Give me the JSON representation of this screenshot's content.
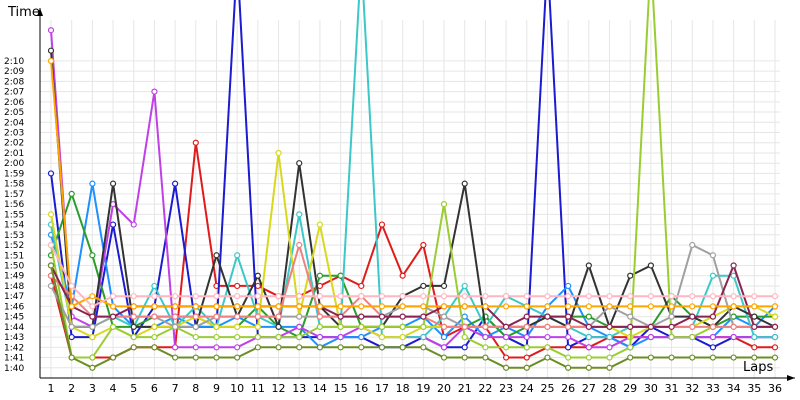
{
  "chart_data": {
    "type": "line",
    "ylabel": "Time",
    "xlabel": "Laps",
    "x_categories": [
      "1",
      "2",
      "3",
      "4",
      "5",
      "6",
      "7",
      "8",
      "9",
      "10",
      "11",
      "12",
      "13",
      "14",
      "15",
      "16",
      "17",
      "18",
      "19",
      "20",
      "21",
      "22",
      "23",
      "24",
      "25",
      "26",
      "27",
      "28",
      "29",
      "30",
      "31",
      "32",
      "33",
      "34",
      "35",
      "36"
    ],
    "y_ticks": [
      "1:40",
      "1:41",
      "1:42",
      "1:43",
      "1:44",
      "1:45",
      "1:46",
      "1:47",
      "1:48",
      "1:49",
      "1:50",
      "1:51",
      "1:52",
      "1:53",
      "1:54",
      "1:55",
      "1:56",
      "1:57",
      "1:58",
      "1:59",
      "2:00",
      "2:01",
      "2:02",
      "2:03",
      "2:04",
      "2:05",
      "2:06",
      "2:07",
      "2:08",
      "2:09",
      "2:10"
    ],
    "y_range_seconds": [
      99,
      134
    ],
    "grid": "on",
    "series": [
      {
        "color": "#e01b1b",
        "values": [
          109,
          101,
          101,
          101,
          102,
          102,
          102,
          122,
          108,
          108,
          108,
          107,
          107,
          108,
          109,
          108,
          114,
          109,
          112,
          103,
          104,
          104,
          101,
          101,
          102,
          102,
          102,
          103,
          103,
          103,
          103,
          103,
          103,
          103,
          102,
          102
        ]
      },
      {
        "color": "#1b1bd0",
        "values": [
          119,
          103,
          103,
          114,
          103,
          106,
          118,
          104,
          104,
          140,
          103,
          103,
          103,
          103,
          103,
          103,
          102,
          102,
          103,
          102,
          102,
          105,
          103,
          102,
          140,
          102,
          103,
          103,
          102,
          104,
          103,
          103,
          102,
          103,
          103,
          103
        ]
      },
      {
        "color": "#1e90ff",
        "values": [
          113,
          106,
          118,
          106,
          104,
          104,
          105,
          104,
          104,
          105,
          104,
          104,
          104,
          102,
          103,
          103,
          104,
          104,
          105,
          103,
          105,
          103,
          104,
          103,
          106,
          108,
          104,
          103,
          102,
          103,
          103,
          103,
          103,
          105,
          104,
          106
        ]
      },
      {
        "color": "#2a9d2a",
        "values": [
          111,
          117,
          111,
          104,
          104,
          105,
          105,
          105,
          104,
          104,
          106,
          104,
          103,
          109,
          109,
          104,
          104,
          104,
          104,
          104,
          104,
          105,
          103,
          104,
          105,
          105,
          105,
          104,
          104,
          104,
          107,
          105,
          104,
          105,
          105,
          105
        ]
      },
      {
        "color": "#c040e8",
        "values": [
          133,
          105,
          104,
          116,
          114,
          127,
          102,
          102,
          102,
          102,
          103,
          103,
          104,
          103,
          103,
          104,
          103,
          103,
          103,
          102,
          104,
          103,
          103,
          103,
          103,
          103,
          102,
          102,
          103,
          103,
          103,
          103,
          103,
          103,
          103,
          103
        ]
      },
      {
        "color": "#3cc8c8",
        "values": [
          114,
          104,
          104,
          105,
          104,
          108,
          104,
          106,
          104,
          111,
          105,
          104,
          115,
          104,
          104,
          140,
          103,
          103,
          103,
          105,
          108,
          104,
          107,
          106,
          105,
          104,
          103,
          103,
          104,
          104,
          104,
          104,
          109,
          109,
          103,
          103
        ]
      },
      {
        "color": "#333333",
        "values": [
          131,
          104,
          104,
          118,
          104,
          104,
          104,
          104,
          111,
          105,
          109,
          104,
          120,
          106,
          104,
          104,
          104,
          107,
          108,
          108,
          118,
          104,
          104,
          104,
          105,
          104,
          110,
          104,
          109,
          110,
          105,
          105,
          104,
          106,
          105,
          104
        ]
      },
      {
        "color": "#d8d81e",
        "values": [
          115,
          104,
          103,
          104,
          103,
          104,
          104,
          105,
          104,
          104,
          104,
          121,
          105,
          114,
          104,
          104,
          103,
          103,
          104,
          104,
          104,
          104,
          104,
          104,
          104,
          104,
          104,
          104,
          103,
          104,
          104,
          104,
          105,
          106,
          106,
          105
        ]
      },
      {
        "color": "#9acd32",
        "values": [
          112,
          101,
          101,
          104,
          103,
          103,
          104,
          103,
          103,
          103,
          103,
          103,
          103,
          104,
          104,
          104,
          104,
          104,
          104,
          116,
          103,
          102,
          102,
          102,
          102,
          101,
          101,
          101,
          102,
          140,
          103,
          103,
          104,
          104,
          104,
          104
        ]
      },
      {
        "color": "#a0a0a0",
        "values": [
          108,
          104,
          104,
          105,
          105,
          105,
          104,
          104,
          105,
          105,
          105,
          105,
          105,
          105,
          105,
          105,
          105,
          106,
          106,
          105,
          104,
          104,
          104,
          104,
          104,
          104,
          104,
          106,
          105,
          104,
          105,
          112,
          111,
          104,
          104,
          104
        ]
      },
      {
        "color": "#f08080",
        "values": [
          109,
          107,
          105,
          105,
          105,
          105,
          105,
          105,
          105,
          105,
          105,
          105,
          112,
          105,
          105,
          107,
          105,
          105,
          105,
          104,
          104,
          104,
          104,
          104,
          104,
          104,
          104,
          104,
          104,
          104,
          104,
          104,
          104,
          104,
          104,
          104
        ]
      },
      {
        "color": "#8b2252",
        "values": [
          110,
          106,
          105,
          105,
          106,
          106,
          106,
          106,
          106,
          106,
          106,
          106,
          106,
          106,
          105,
          105,
          105,
          105,
          105,
          106,
          106,
          106,
          104,
          105,
          105,
          105,
          104,
          104,
          104,
          104,
          104,
          105,
          105,
          110,
          104,
          104
        ]
      },
      {
        "color": "#ffa500",
        "values": [
          130,
          106,
          107,
          106,
          106,
          106,
          106,
          106,
          106,
          106,
          106,
          106,
          106,
          106,
          106,
          106,
          106,
          106,
          106,
          106,
          106,
          106,
          106,
          106,
          106,
          106,
          106,
          106,
          106,
          106,
          106,
          106,
          106,
          106,
          106,
          106
        ]
      },
      {
        "color": "#ffb6c1",
        "values": [
          112,
          108,
          106,
          107,
          107,
          107,
          107,
          107,
          107,
          107,
          107,
          107,
          107,
          107,
          107,
          107,
          107,
          107,
          107,
          107,
          107,
          107,
          107,
          107,
          107,
          107,
          107,
          107,
          107,
          107,
          107,
          107,
          107,
          107,
          107,
          107
        ]
      },
      {
        "color": "#6b8e23",
        "values": [
          110,
          101,
          100,
          101,
          102,
          102,
          101,
          101,
          101,
          101,
          102,
          102,
          102,
          102,
          102,
          102,
          102,
          102,
          102,
          101,
          101,
          101,
          100,
          100,
          101,
          100,
          100,
          100,
          101,
          101,
          101,
          101,
          101,
          101,
          101,
          101
        ]
      }
    ]
  }
}
